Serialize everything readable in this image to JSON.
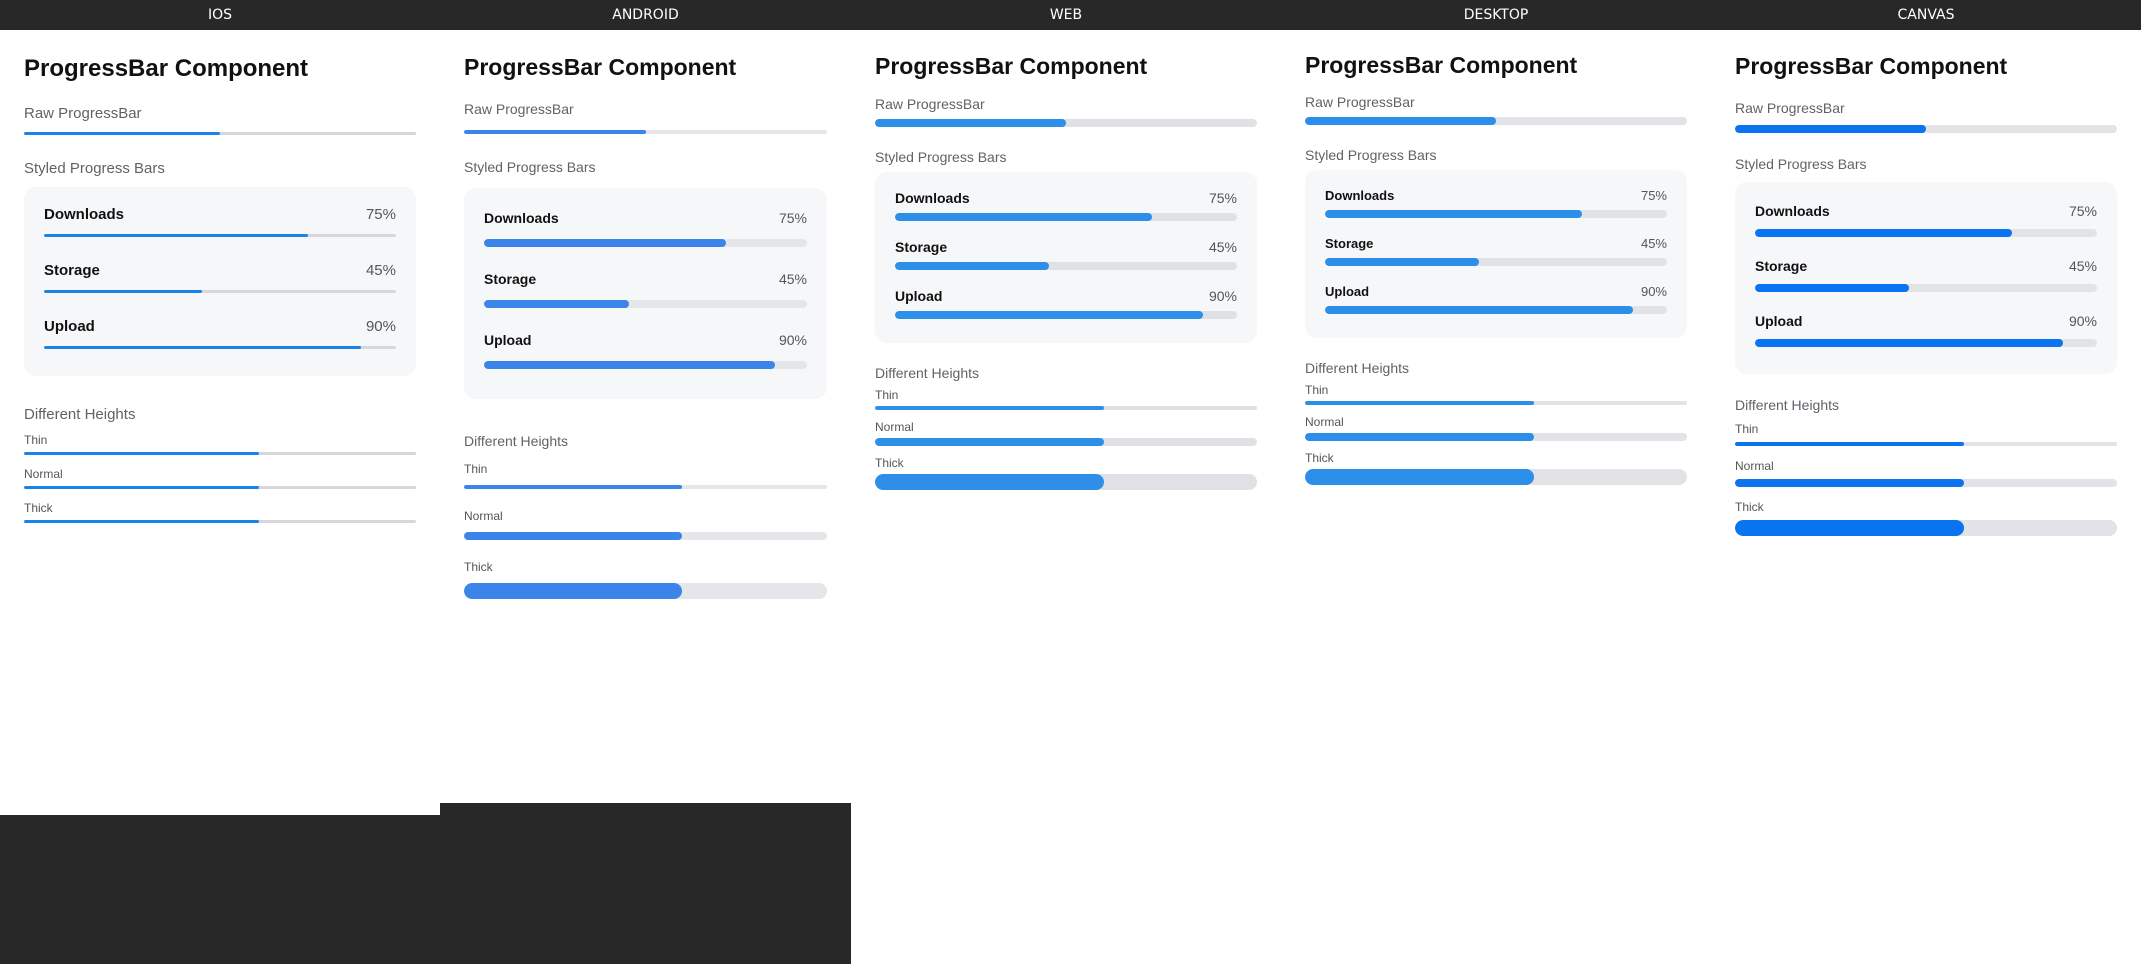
{
  "colors": {
    "header_bg": "#282828",
    "ios_fill": "#1a82e8",
    "android_fill": "#3b84e9",
    "web_fill": "#2d8fe8",
    "desktop_fill": "#2b8ee8",
    "canvas_fill": "#0a74f0"
  },
  "columns": [
    {
      "key": "ios",
      "header": "IOS",
      "title": "ProgressBar Component",
      "raw_label": "Raw ProgressBar",
      "raw_progress": 0.5,
      "styled_label": "Styled Progress Bars",
      "items": [
        {
          "name": "Downloads",
          "pct_text": "75%",
          "value": 0.75
        },
        {
          "name": "Storage",
          "pct_text": "45%",
          "value": 0.45
        },
        {
          "name": "Upload",
          "pct_text": "90%",
          "value": 0.9
        }
      ],
      "heights_label": "Different Heights",
      "heights": [
        {
          "label": "Thin",
          "value": 0.6
        },
        {
          "label": "Normal",
          "value": 0.6
        },
        {
          "label": "Thick",
          "value": 0.6
        }
      ]
    },
    {
      "key": "android",
      "header": "ANDROID",
      "title": "ProgressBar Component",
      "raw_label": "Raw ProgressBar",
      "raw_progress": 0.5,
      "styled_label": "Styled Progress Bars",
      "items": [
        {
          "name": "Downloads",
          "pct_text": "75%",
          "value": 0.75
        },
        {
          "name": "Storage",
          "pct_text": "45%",
          "value": 0.45
        },
        {
          "name": "Upload",
          "pct_text": "90%",
          "value": 0.9
        }
      ],
      "heights_label": "Different Heights",
      "heights": [
        {
          "label": "Thin",
          "value": 0.6
        },
        {
          "label": "Normal",
          "value": 0.6
        },
        {
          "label": "Thick",
          "value": 0.6
        }
      ]
    },
    {
      "key": "web",
      "header": "WEB",
      "title": "ProgressBar Component",
      "raw_label": "Raw ProgressBar",
      "raw_progress": 0.5,
      "styled_label": "Styled Progress Bars",
      "items": [
        {
          "name": "Downloads",
          "pct_text": "75%",
          "value": 0.75
        },
        {
          "name": "Storage",
          "pct_text": "45%",
          "value": 0.45
        },
        {
          "name": "Upload",
          "pct_text": "90%",
          "value": 0.9
        }
      ],
      "heights_label": "Different Heights",
      "heights": [
        {
          "label": "Thin",
          "value": 0.6
        },
        {
          "label": "Normal",
          "value": 0.6
        },
        {
          "label": "Thick",
          "value": 0.6
        }
      ]
    },
    {
      "key": "desktop",
      "header": "DESKTOP",
      "title": "ProgressBar Component",
      "raw_label": "Raw ProgressBar",
      "raw_progress": 0.5,
      "styled_label": "Styled Progress Bars",
      "items": [
        {
          "name": "Downloads",
          "pct_text": "75%",
          "value": 0.75
        },
        {
          "name": "Storage",
          "pct_text": "45%",
          "value": 0.45
        },
        {
          "name": "Upload",
          "pct_text": "90%",
          "value": 0.9
        }
      ],
      "heights_label": "Different Heights",
      "heights": [
        {
          "label": "Thin",
          "value": 0.6
        },
        {
          "label": "Normal",
          "value": 0.6
        },
        {
          "label": "Thick",
          "value": 0.6
        }
      ]
    },
    {
      "key": "canvas",
      "header": "CANVAS",
      "title": "ProgressBar Component",
      "raw_label": "Raw ProgressBar",
      "raw_progress": 0.5,
      "styled_label": "Styled Progress Bars",
      "items": [
        {
          "name": "Downloads",
          "pct_text": "75%",
          "value": 0.75
        },
        {
          "name": "Storage",
          "pct_text": "45%",
          "value": 0.45
        },
        {
          "name": "Upload",
          "pct_text": "90%",
          "value": 0.9
        }
      ],
      "heights_label": "Different Heights",
      "heights": [
        {
          "label": "Thin",
          "value": 0.6
        },
        {
          "label": "Normal",
          "value": 0.6
        },
        {
          "label": "Thick",
          "value": 0.6
        }
      ]
    }
  ]
}
